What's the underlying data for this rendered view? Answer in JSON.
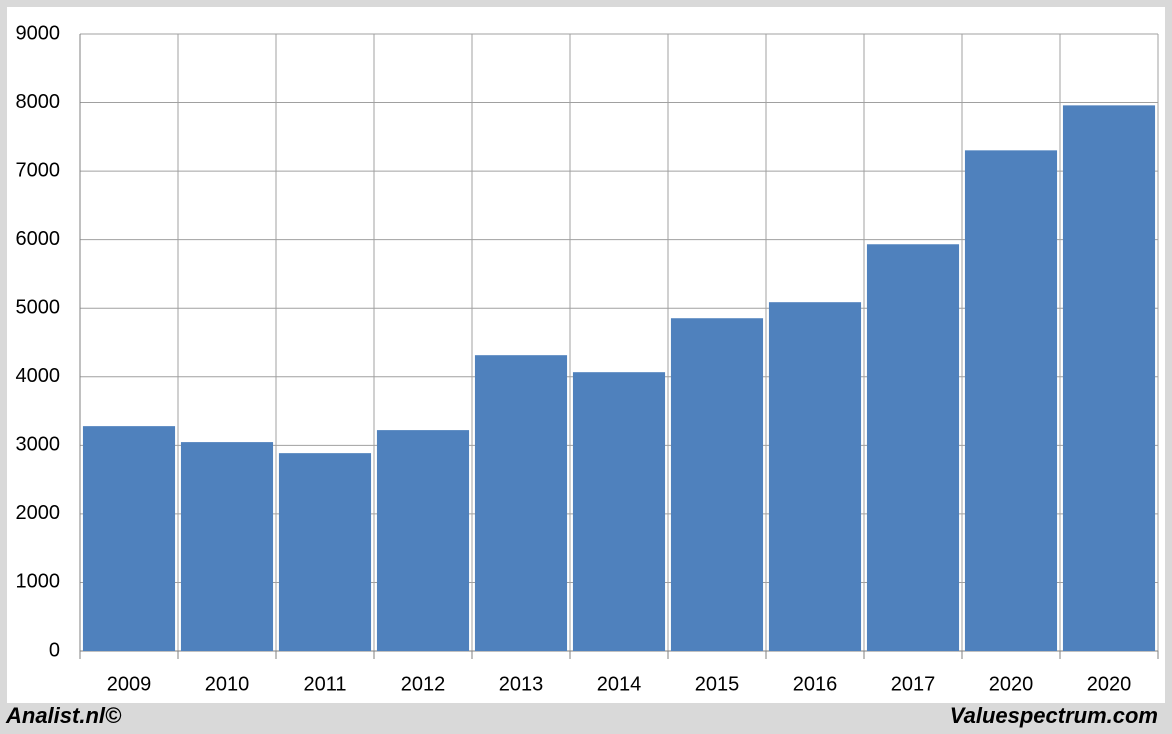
{
  "chart_data": {
    "type": "bar",
    "categories": [
      "2009",
      "2010",
      "2011",
      "2012",
      "2013",
      "2014",
      "2015",
      "2016",
      "2017",
      "2020",
      "2020"
    ],
    "values": [
      3280,
      3047,
      2886,
      3222,
      4315,
      4067,
      4854,
      5088,
      5933,
      7303,
      7959
    ],
    "color": "#4f81bd",
    "ylim": [
      0,
      9000
    ],
    "yticks": [
      0,
      1000,
      2000,
      3000,
      4000,
      5000,
      6000,
      7000,
      8000,
      9000
    ],
    "grid": true,
    "annotations": [
      "Analist.nl©",
      "Valuespectrum.com"
    ]
  }
}
